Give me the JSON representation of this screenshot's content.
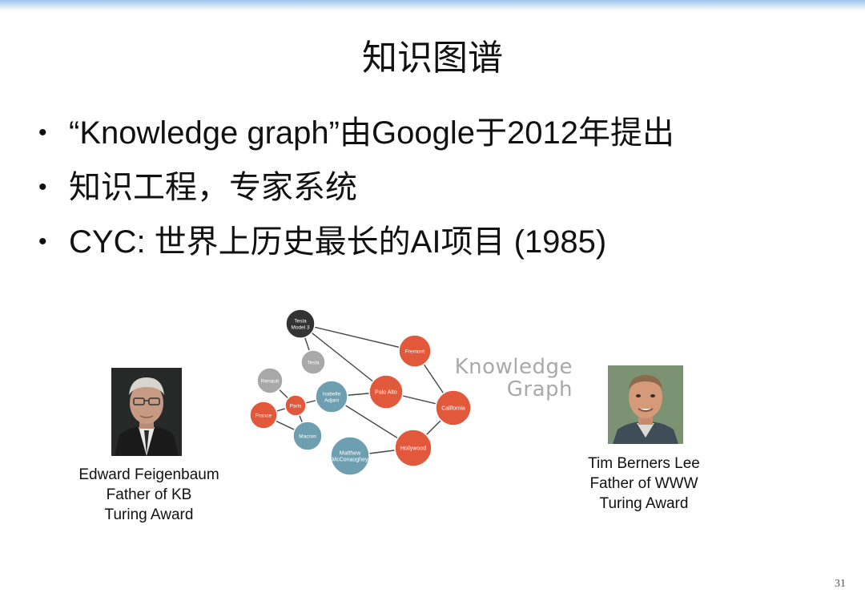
{
  "slide": {
    "title": "知识图谱",
    "bullets": [
      {
        "text": "“Knowledge graph”由Google于2012年提出"
      },
      {
        "text": "知识工程，专家系统"
      },
      {
        "text": "CYC: 世界上历史最长的AI项目 (1985)"
      }
    ],
    "bullet_char": "•",
    "slide_number": "31"
  },
  "left_person": {
    "lines": [
      "Edward Feigenbaum",
      "Father of KB",
      "Turing Award"
    ]
  },
  "right_person": {
    "lines": [
      "Tim Berners Lee",
      "Father of WWW",
      "Turing Award"
    ]
  },
  "graph": {
    "label_line1": "Knowledge",
    "label_line2": "Graph",
    "colors": {
      "red": "#e2583b",
      "gray": "#a8a8a8",
      "teal": "#6d9fb0",
      "dark": "#333333",
      "edge": "#444444"
    },
    "nodes": [
      {
        "id": "tesla_model3",
        "line1": "Tesla",
        "line2": "Model 3",
        "kind": "dark"
      },
      {
        "id": "tesla",
        "line1": "Tesla",
        "line2": "",
        "kind": "gray"
      },
      {
        "id": "renault",
        "line1": "Renault",
        "line2": "",
        "kind": "gray"
      },
      {
        "id": "fremont",
        "line1": "Fremont",
        "line2": "",
        "kind": "red"
      },
      {
        "id": "palo_alto",
        "line1": "Palo Alto",
        "line2": "",
        "kind": "red"
      },
      {
        "id": "california",
        "line1": "California",
        "line2": "",
        "kind": "red"
      },
      {
        "id": "paris",
        "line1": "Paris",
        "line2": "",
        "kind": "red"
      },
      {
        "id": "france",
        "line1": "France",
        "line2": "",
        "kind": "red"
      },
      {
        "id": "isabelle",
        "line1": "Isabelle",
        "line2": "Adjani",
        "kind": "teal"
      },
      {
        "id": "macron",
        "line1": "Macron",
        "line2": "",
        "kind": "teal"
      },
      {
        "id": "matthew",
        "line1": "Matthew",
        "line2": "McConaughey",
        "kind": "teal"
      },
      {
        "id": "hollywood",
        "line1": "Hollywood",
        "line2": "",
        "kind": "red"
      }
    ]
  }
}
